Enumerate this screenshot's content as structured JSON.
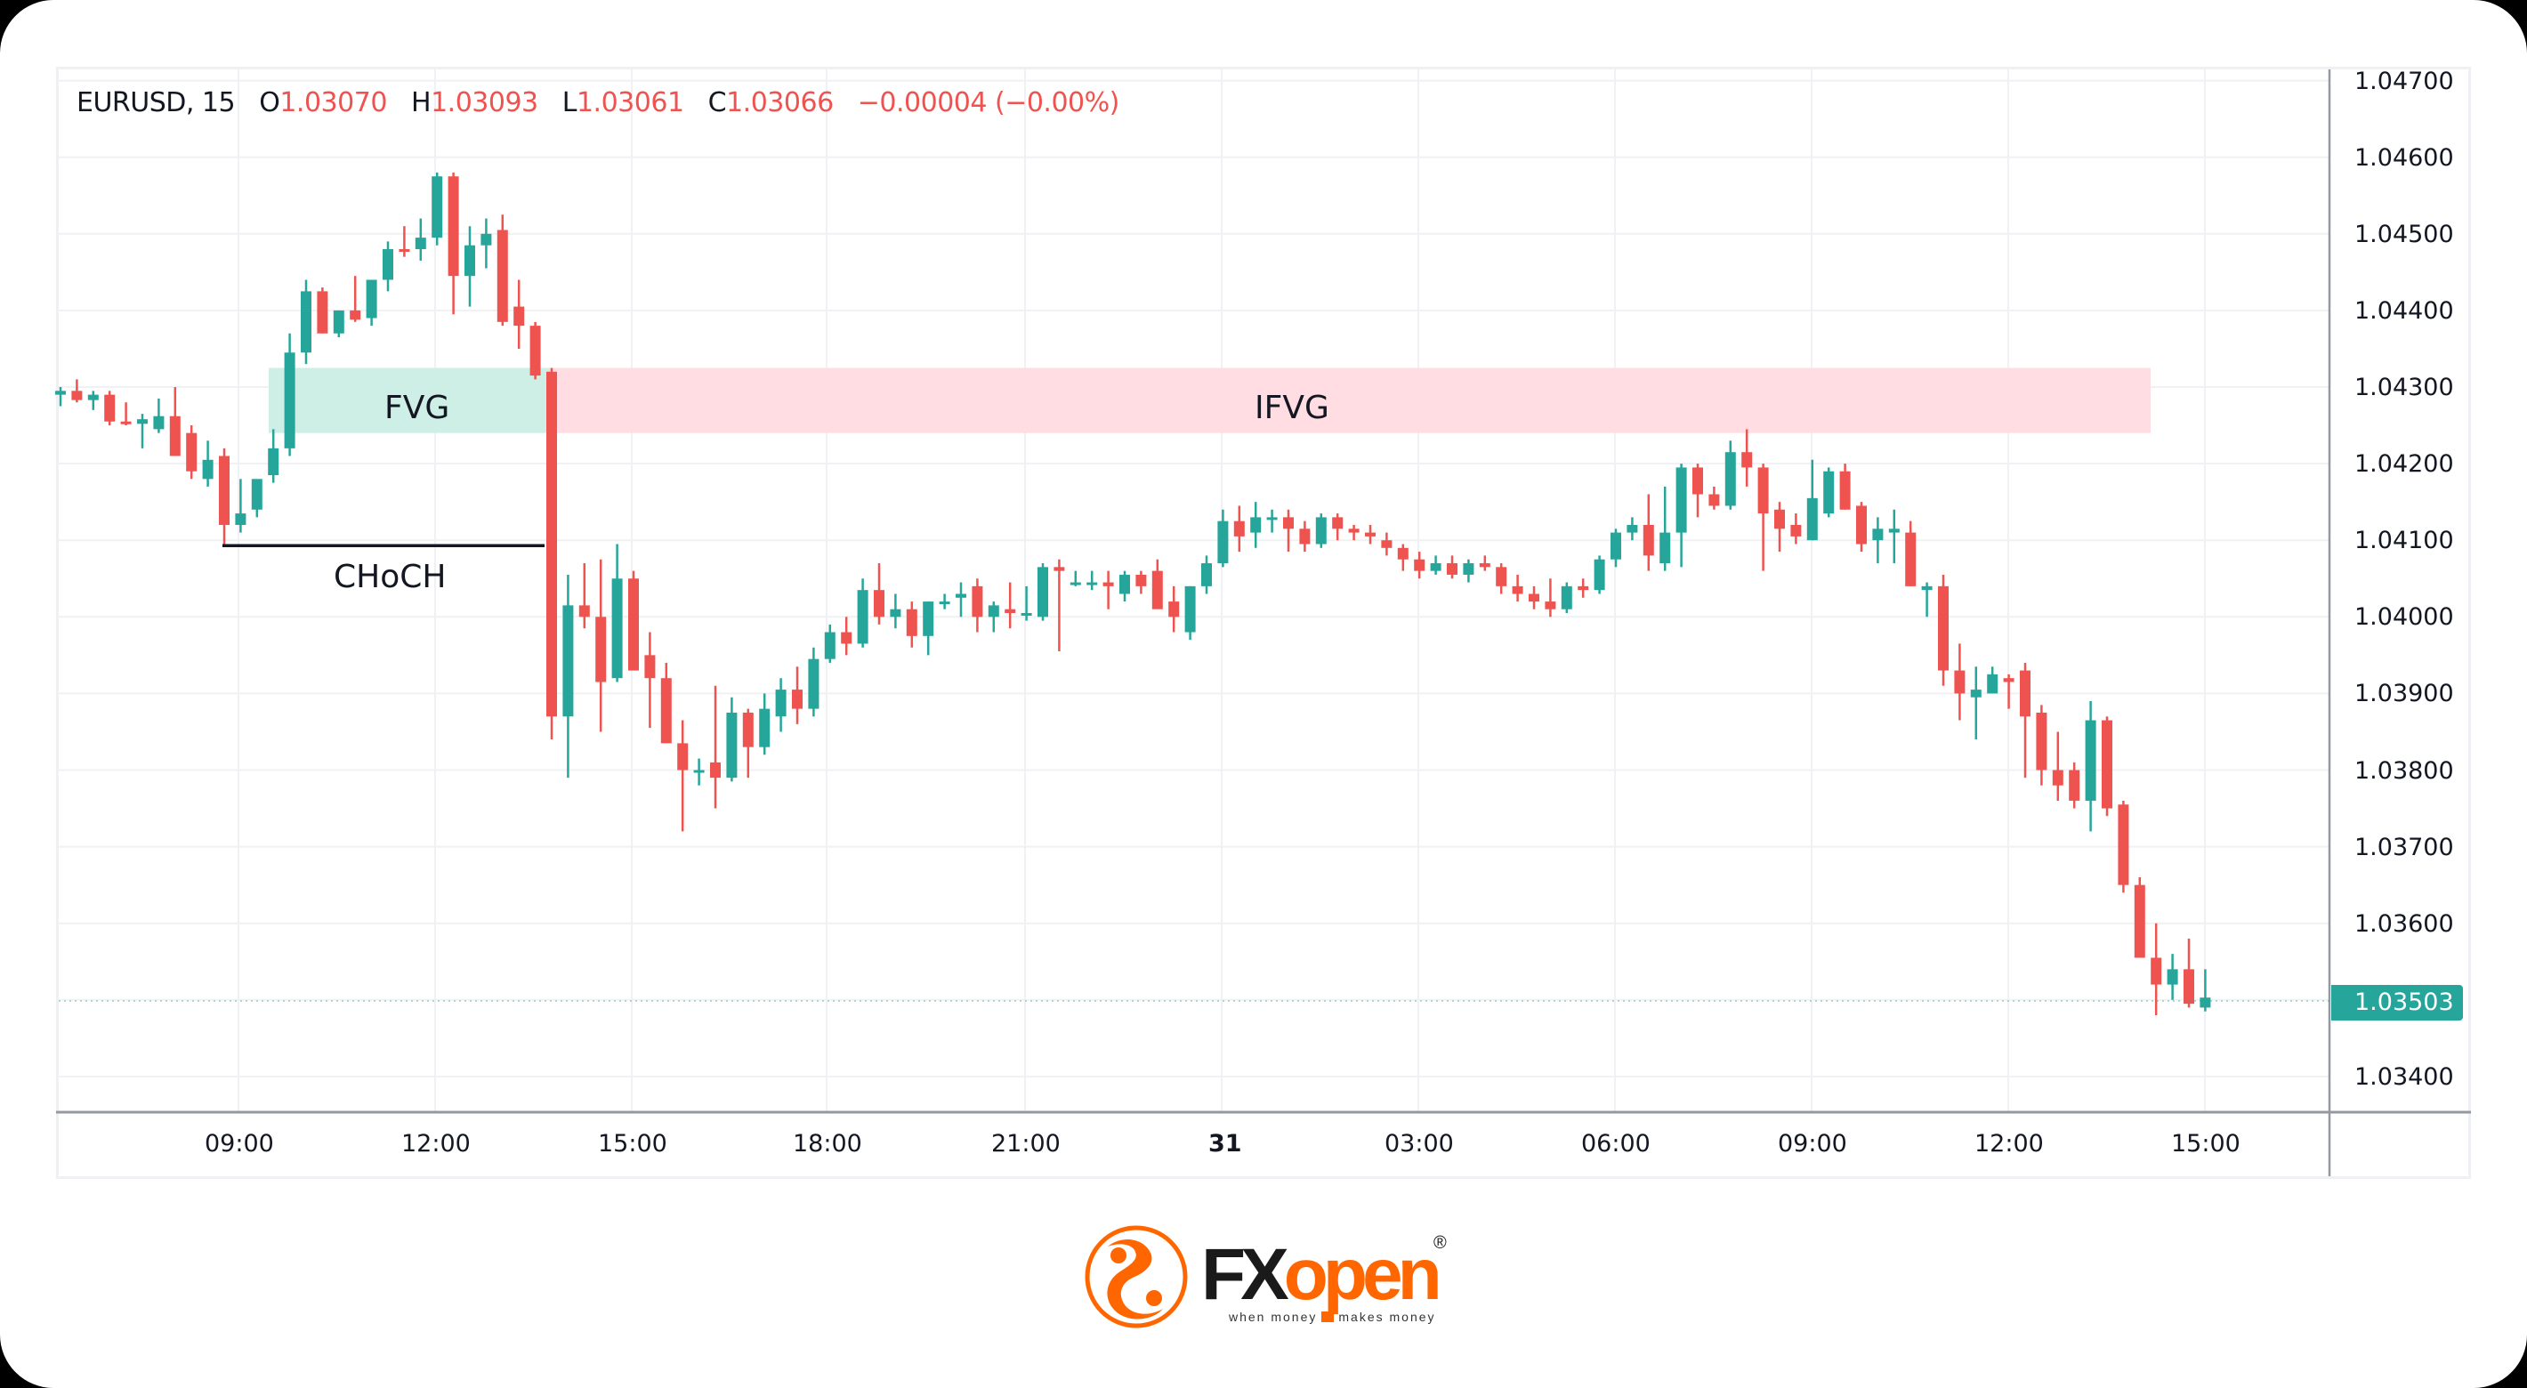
{
  "legend": {
    "symbol": "EURUSD, 15",
    "open_label": "O",
    "open": "1.03070",
    "high_label": "H",
    "high": "1.03093",
    "low_label": "L",
    "low": "1.03061",
    "close_label": "C",
    "close": "1.03066",
    "change": "−0.00004 (−0.00%)"
  },
  "price_axis": {
    "labels": [
      "1.04700",
      "1.04600",
      "1.04500",
      "1.04400",
      "1.04300",
      "1.04200",
      "1.04100",
      "1.04000",
      "1.03900",
      "1.03800",
      "1.03700",
      "1.03600",
      "1.03400"
    ],
    "current_price": "1.03503"
  },
  "time_axis": {
    "labels": [
      "09:00",
      "12:00",
      "15:00",
      "18:00",
      "21:00",
      "31",
      "03:00",
      "06:00",
      "09:00",
      "12:00",
      "15:00"
    ]
  },
  "annotations": {
    "fvg": "FVG",
    "ifvg": "IFVG",
    "choch": "CHoCH"
  },
  "logo": {
    "brand_fx": "FX",
    "brand_open": "open",
    "registered": "®",
    "tagline_left": "when money",
    "tagline_right": "makes money"
  },
  "colors": {
    "bull": "#26a69a",
    "bear": "#ef5350",
    "fvg_fill": "#cdefe6",
    "ifvg_fill": "#ffdde2",
    "grid": "#f0f1f4",
    "brand_orange": "#ff6600"
  },
  "chart_data": {
    "type": "candlestick",
    "title": "EURUSD, 15",
    "timeframe": "15m",
    "xlabel": "",
    "ylabel": "",
    "ylim": [
      1.0335,
      1.0471
    ],
    "grid": true,
    "y_ticks": [
      1.047,
      1.046,
      1.045,
      1.044,
      1.043,
      1.042,
      1.041,
      1.04,
      1.039,
      1.038,
      1.037,
      1.036,
      1.034
    ],
    "x_ticks": [
      "09:00",
      "12:00",
      "15:00",
      "18:00",
      "21:00",
      "31",
      "03:00",
      "06:00",
      "09:00",
      "12:00",
      "15:00"
    ],
    "last_price": 1.03503,
    "ohlc_header": {
      "open": 1.0307,
      "high": 1.03093,
      "low": 1.03061,
      "close": 1.03066,
      "change": -4e-05,
      "change_pct": -0.0
    },
    "zones": [
      {
        "label": "FVG",
        "type": "bullish_fvg",
        "from_price": 1.0424,
        "to_price": 1.04325,
        "start": "~09:45",
        "end": "~13:45"
      },
      {
        "label": "IFVG",
        "type": "inverse_fvg",
        "from_price": 1.0424,
        "to_price": 1.04325,
        "start": "~13:45",
        "end": "~14:15 (day 2)"
      }
    ],
    "lines": [
      {
        "label": "CHoCH",
        "price": 1.04093,
        "start": "~08:45",
        "end": "~13:45"
      }
    ],
    "candles": [
      {
        "o": 1.0429,
        "h": 1.043,
        "l": 1.04275,
        "c": 1.04295
      },
      {
        "o": 1.04295,
        "h": 1.0431,
        "l": 1.0428,
        "c": 1.04283
      },
      {
        "o": 1.04283,
        "h": 1.04295,
        "l": 1.0427,
        "c": 1.0429
      },
      {
        "o": 1.0429,
        "h": 1.04295,
        "l": 1.0425,
        "c": 1.04255
      },
      {
        "o": 1.04255,
        "h": 1.0428,
        "l": 1.0425,
        "c": 1.04252
      },
      {
        "o": 1.04252,
        "h": 1.04265,
        "l": 1.0422,
        "c": 1.04258
      },
      {
        "o": 1.04245,
        "h": 1.04285,
        "l": 1.0424,
        "c": 1.04262
      },
      {
        "o": 1.04262,
        "h": 1.043,
        "l": 1.0423,
        "c": 1.0421
      },
      {
        "o": 1.0424,
        "h": 1.0425,
        "l": 1.0418,
        "c": 1.0419
      },
      {
        "o": 1.0418,
        "h": 1.0423,
        "l": 1.0417,
        "c": 1.04205
      },
      {
        "o": 1.0421,
        "h": 1.0422,
        "l": 1.04095,
        "c": 1.0412
      },
      {
        "o": 1.0412,
        "h": 1.0418,
        "l": 1.0411,
        "c": 1.04135
      },
      {
        "o": 1.0414,
        "h": 1.04175,
        "l": 1.0413,
        "c": 1.0418
      },
      {
        "o": 1.04185,
        "h": 1.04245,
        "l": 1.04175,
        "c": 1.0422
      },
      {
        "o": 1.0422,
        "h": 1.0437,
        "l": 1.0421,
        "c": 1.04345
      },
      {
        "o": 1.04345,
        "h": 1.0444,
        "l": 1.0433,
        "c": 1.04425
      },
      {
        "o": 1.04425,
        "h": 1.0443,
        "l": 1.0437,
        "c": 1.0437
      },
      {
        "o": 1.0437,
        "h": 1.044,
        "l": 1.04365,
        "c": 1.044
      },
      {
        "o": 1.044,
        "h": 1.04445,
        "l": 1.04385,
        "c": 1.04388
      },
      {
        "o": 1.0439,
        "h": 1.0442,
        "l": 1.0438,
        "c": 1.0444
      },
      {
        "o": 1.0444,
        "h": 1.0449,
        "l": 1.04425,
        "c": 1.0448
      },
      {
        "o": 1.0448,
        "h": 1.0451,
        "l": 1.0447,
        "c": 1.04478
      },
      {
        "o": 1.0448,
        "h": 1.0452,
        "l": 1.04465,
        "c": 1.04495
      },
      {
        "o": 1.04495,
        "h": 1.0458,
        "l": 1.04485,
        "c": 1.04575
      },
      {
        "o": 1.04575,
        "h": 1.0458,
        "l": 1.04395,
        "c": 1.04445
      },
      {
        "o": 1.04445,
        "h": 1.0451,
        "l": 1.04405,
        "c": 1.04485
      },
      {
        "o": 1.04485,
        "h": 1.0452,
        "l": 1.04455,
        "c": 1.045
      },
      {
        "o": 1.04505,
        "h": 1.04525,
        "l": 1.0438,
        "c": 1.04385
      },
      {
        "o": 1.04405,
        "h": 1.0444,
        "l": 1.0435,
        "c": 1.0438
      },
      {
        "o": 1.0438,
        "h": 1.04385,
        "l": 1.0431,
        "c": 1.04315
      },
      {
        "o": 1.0432,
        "h": 1.04325,
        "l": 1.0384,
        "c": 1.0387
      },
      {
        "o": 1.0387,
        "h": 1.04055,
        "l": 1.0379,
        "c": 1.04015
      },
      {
        "o": 1.04015,
        "h": 1.0407,
        "l": 1.03985,
        "c": 1.04
      },
      {
        "o": 1.04,
        "h": 1.04075,
        "l": 1.0385,
        "c": 1.03915
      },
      {
        "o": 1.0392,
        "h": 1.04095,
        "l": 1.03915,
        "c": 1.0405
      },
      {
        "o": 1.0405,
        "h": 1.0406,
        "l": 1.0393,
        "c": 1.0393
      },
      {
        "o": 1.0395,
        "h": 1.0398,
        "l": 1.03855,
        "c": 1.0392
      },
      {
        "o": 1.0392,
        "h": 1.0394,
        "l": 1.0384,
        "c": 1.03835
      },
      {
        "o": 1.03835,
        "h": 1.03865,
        "l": 1.0372,
        "c": 1.038
      },
      {
        "o": 1.038,
        "h": 1.03815,
        "l": 1.0378,
        "c": 1.038
      },
      {
        "o": 1.0381,
        "h": 1.0391,
        "l": 1.0375,
        "c": 1.0379
      },
      {
        "o": 1.0379,
        "h": 1.03895,
        "l": 1.03785,
        "c": 1.03875
      },
      {
        "o": 1.03875,
        "h": 1.0388,
        "l": 1.0379,
        "c": 1.0383
      },
      {
        "o": 1.0383,
        "h": 1.039,
        "l": 1.0382,
        "c": 1.0388
      },
      {
        "o": 1.0387,
        "h": 1.0392,
        "l": 1.0385,
        "c": 1.03905
      },
      {
        "o": 1.03905,
        "h": 1.03935,
        "l": 1.0386,
        "c": 1.0388
      },
      {
        "o": 1.0388,
        "h": 1.0396,
        "l": 1.0387,
        "c": 1.03945
      },
      {
        "o": 1.03945,
        "h": 1.0399,
        "l": 1.0394,
        "c": 1.0398
      },
      {
        "o": 1.0398,
        "h": 1.04,
        "l": 1.0395,
        "c": 1.03965
      },
      {
        "o": 1.03965,
        "h": 1.0405,
        "l": 1.0396,
        "c": 1.04035
      },
      {
        "o": 1.04035,
        "h": 1.0407,
        "l": 1.0399,
        "c": 1.04
      },
      {
        "o": 1.04,
        "h": 1.0403,
        "l": 1.03985,
        "c": 1.0401
      },
      {
        "o": 1.0401,
        "h": 1.0402,
        "l": 1.0396,
        "c": 1.03975
      },
      {
        "o": 1.03975,
        "h": 1.0402,
        "l": 1.0395,
        "c": 1.0402
      },
      {
        "o": 1.0402,
        "h": 1.0403,
        "l": 1.0401,
        "c": 1.0402
      },
      {
        "o": 1.04025,
        "h": 1.04045,
        "l": 1.04,
        "c": 1.0403
      },
      {
        "o": 1.0404,
        "h": 1.0405,
        "l": 1.0398,
        "c": 1.04
      },
      {
        "o": 1.04,
        "h": 1.0402,
        "l": 1.0398,
        "c": 1.04015
      },
      {
        "o": 1.0401,
        "h": 1.04045,
        "l": 1.03985,
        "c": 1.04005
      },
      {
        "o": 1.04005,
        "h": 1.0404,
        "l": 1.03995,
        "c": 1.04005
      },
      {
        "o": 1.04,
        "h": 1.0407,
        "l": 1.03995,
        "c": 1.04065
      },
      {
        "o": 1.04065,
        "h": 1.04075,
        "l": 1.03955,
        "c": 1.0406
      },
      {
        "o": 1.04045,
        "h": 1.0406,
        "l": 1.0404,
        "c": 1.04045
      },
      {
        "o": 1.04045,
        "h": 1.0406,
        "l": 1.04035,
        "c": 1.04045
      },
      {
        "o": 1.04045,
        "h": 1.0406,
        "l": 1.0401,
        "c": 1.0404
      },
      {
        "o": 1.0403,
        "h": 1.0406,
        "l": 1.0402,
        "c": 1.04055
      },
      {
        "o": 1.04055,
        "h": 1.0406,
        "l": 1.0403,
        "c": 1.0404
      },
      {
        "o": 1.0406,
        "h": 1.04075,
        "l": 1.0402,
        "c": 1.0401
      },
      {
        "o": 1.0402,
        "h": 1.0404,
        "l": 1.0398,
        "c": 1.04
      },
      {
        "o": 1.0398,
        "h": 1.0404,
        "l": 1.0397,
        "c": 1.0404
      },
      {
        "o": 1.0404,
        "h": 1.0408,
        "l": 1.0403,
        "c": 1.0407
      },
      {
        "o": 1.0407,
        "h": 1.0414,
        "l": 1.04065,
        "c": 1.04125
      },
      {
        "o": 1.04125,
        "h": 1.04145,
        "l": 1.04085,
        "c": 1.04105
      },
      {
        "o": 1.0411,
        "h": 1.0415,
        "l": 1.0409,
        "c": 1.0413
      },
      {
        "o": 1.0413,
        "h": 1.0414,
        "l": 1.0411,
        "c": 1.0413
      },
      {
        "o": 1.0413,
        "h": 1.0414,
        "l": 1.04085,
        "c": 1.04115
      },
      {
        "o": 1.04115,
        "h": 1.04125,
        "l": 1.04085,
        "c": 1.04095
      },
      {
        "o": 1.04095,
        "h": 1.04135,
        "l": 1.0409,
        "c": 1.0413
      },
      {
        "o": 1.0413,
        "h": 1.04135,
        "l": 1.041,
        "c": 1.04115
      },
      {
        "o": 1.04115,
        "h": 1.0412,
        "l": 1.041,
        "c": 1.0411
      },
      {
        "o": 1.0411,
        "h": 1.0412,
        "l": 1.04095,
        "c": 1.04105
      },
      {
        "o": 1.041,
        "h": 1.0411,
        "l": 1.0408,
        "c": 1.0409
      },
      {
        "o": 1.0409,
        "h": 1.04095,
        "l": 1.0406,
        "c": 1.04075
      },
      {
        "o": 1.04075,
        "h": 1.04085,
        "l": 1.0405,
        "c": 1.0406
      },
      {
        "o": 1.0406,
        "h": 1.0408,
        "l": 1.04055,
        "c": 1.0407
      },
      {
        "o": 1.0407,
        "h": 1.0408,
        "l": 1.0405,
        "c": 1.04055
      },
      {
        "o": 1.04055,
        "h": 1.04075,
        "l": 1.04045,
        "c": 1.0407
      },
      {
        "o": 1.0407,
        "h": 1.0408,
        "l": 1.0406,
        "c": 1.04065
      },
      {
        "o": 1.04065,
        "h": 1.0407,
        "l": 1.0403,
        "c": 1.0404
      },
      {
        "o": 1.0404,
        "h": 1.04055,
        "l": 1.0402,
        "c": 1.0403
      },
      {
        "o": 1.0403,
        "h": 1.0404,
        "l": 1.0401,
        "c": 1.0402
      },
      {
        "o": 1.0402,
        "h": 1.0405,
        "l": 1.04,
        "c": 1.0401
      },
      {
        "o": 1.0401,
        "h": 1.04045,
        "l": 1.04005,
        "c": 1.0404
      },
      {
        "o": 1.0404,
        "h": 1.0405,
        "l": 1.04025,
        "c": 1.04035
      },
      {
        "o": 1.04035,
        "h": 1.0408,
        "l": 1.0403,
        "c": 1.04075
      },
      {
        "o": 1.04075,
        "h": 1.04115,
        "l": 1.04065,
        "c": 1.0411
      },
      {
        "o": 1.0411,
        "h": 1.0413,
        "l": 1.041,
        "c": 1.0412
      },
      {
        "o": 1.0412,
        "h": 1.0416,
        "l": 1.0406,
        "c": 1.0408
      },
      {
        "o": 1.0407,
        "h": 1.0417,
        "l": 1.0406,
        "c": 1.0411
      },
      {
        "o": 1.0411,
        "h": 1.042,
        "l": 1.04065,
        "c": 1.04195
      },
      {
        "o": 1.04195,
        "h": 1.042,
        "l": 1.0413,
        "c": 1.0416
      },
      {
        "o": 1.0416,
        "h": 1.0417,
        "l": 1.0414,
        "c": 1.04145
      },
      {
        "o": 1.04145,
        "h": 1.0423,
        "l": 1.0414,
        "c": 1.04215
      },
      {
        "o": 1.04215,
        "h": 1.04245,
        "l": 1.0417,
        "c": 1.04195
      },
      {
        "o": 1.04195,
        "h": 1.042,
        "l": 1.0406,
        "c": 1.04135
      },
      {
        "o": 1.0414,
        "h": 1.0415,
        "l": 1.04085,
        "c": 1.04115
      },
      {
        "o": 1.0412,
        "h": 1.04135,
        "l": 1.04095,
        "c": 1.04105
      },
      {
        "o": 1.041,
        "h": 1.04205,
        "l": 1.041,
        "c": 1.04155
      },
      {
        "o": 1.04135,
        "h": 1.04195,
        "l": 1.0413,
        "c": 1.0419
      },
      {
        "o": 1.0419,
        "h": 1.042,
        "l": 1.0414,
        "c": 1.0414
      },
      {
        "o": 1.04145,
        "h": 1.0415,
        "l": 1.04085,
        "c": 1.04095
      },
      {
        "o": 1.041,
        "h": 1.0413,
        "l": 1.0407,
        "c": 1.04115
      },
      {
        "o": 1.0411,
        "h": 1.0414,
        "l": 1.0407,
        "c": 1.04115
      },
      {
        "o": 1.0411,
        "h": 1.04125,
        "l": 1.0404,
        "c": 1.0404
      },
      {
        "o": 1.04035,
        "h": 1.04045,
        "l": 1.04,
        "c": 1.0404
      },
      {
        "o": 1.0404,
        "h": 1.04055,
        "l": 1.0391,
        "c": 1.0393
      },
      {
        "o": 1.0393,
        "h": 1.03965,
        "l": 1.03865,
        "c": 1.039
      },
      {
        "o": 1.03895,
        "h": 1.03935,
        "l": 1.0384,
        "c": 1.03905
      },
      {
        "o": 1.039,
        "h": 1.03935,
        "l": 1.039,
        "c": 1.03925
      },
      {
        "o": 1.0392,
        "h": 1.03925,
        "l": 1.0388,
        "c": 1.03915
      },
      {
        "o": 1.0393,
        "h": 1.0394,
        "l": 1.0379,
        "c": 1.0387
      },
      {
        "o": 1.03875,
        "h": 1.03885,
        "l": 1.0378,
        "c": 1.038
      },
      {
        "o": 1.038,
        "h": 1.0385,
        "l": 1.0376,
        "c": 1.0378
      },
      {
        "o": 1.038,
        "h": 1.0381,
        "l": 1.0375,
        "c": 1.0376
      },
      {
        "o": 1.0376,
        "h": 1.0389,
        "l": 1.0372,
        "c": 1.03865
      },
      {
        "o": 1.03865,
        "h": 1.0387,
        "l": 1.0374,
        "c": 1.0375
      },
      {
        "o": 1.03755,
        "h": 1.0376,
        "l": 1.0364,
        "c": 1.0365
      },
      {
        "o": 1.0365,
        "h": 1.0366,
        "l": 1.0356,
        "c": 1.03555
      },
      {
        "o": 1.03555,
        "h": 1.036,
        "l": 1.0348,
        "c": 1.0352
      },
      {
        "o": 1.0352,
        "h": 1.0356,
        "l": 1.035,
        "c": 1.0354
      },
      {
        "o": 1.0354,
        "h": 1.0358,
        "l": 1.0349,
        "c": 1.03495
      },
      {
        "o": 1.0349,
        "h": 1.0354,
        "l": 1.03485,
        "c": 1.03503
      }
    ]
  }
}
